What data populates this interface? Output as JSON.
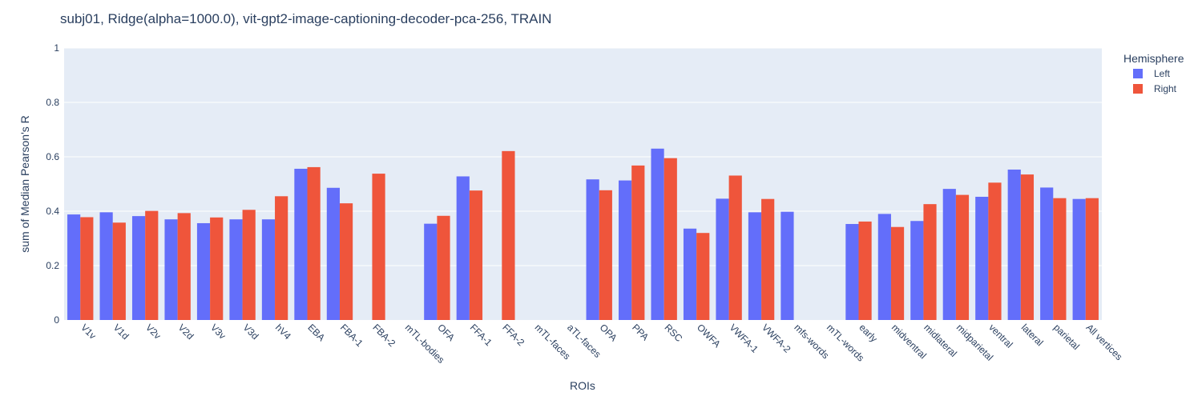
{
  "chart_data": {
    "type": "bar",
    "title": "subj01, Ridge(alpha=1000.0), vit-gpt2-image-captioning-decoder-pca-256, TRAIN",
    "xlabel": "ROIs",
    "ylabel": "sum of Median Pearson's R",
    "ylim": [
      0,
      1
    ],
    "yticks": [
      "0",
      "0.2",
      "0.4",
      "0.6",
      "0.8",
      "1"
    ],
    "grid": true,
    "legend": {
      "title": "Hemisphere",
      "placement": "right"
    },
    "categories": [
      "V1v",
      "V1d",
      "V2v",
      "V2d",
      "V3v",
      "V3d",
      "hV4",
      "EBA",
      "FBA-1",
      "FBA-2",
      "mTL-bodies",
      "OFA",
      "FFA-1",
      "FFA-2",
      "mTL-faces",
      "aTL-faces",
      "OPA",
      "PPA",
      "RSC",
      "OWFA",
      "VWFA-1",
      "VWFA-2",
      "mfs-words",
      "mTL-words",
      "early",
      "midventral",
      "midlateral",
      "midparietal",
      "ventral",
      "lateral",
      "parietal",
      "All vertices"
    ],
    "series": [
      {
        "name": "Left",
        "color": "#636efa",
        "values": [
          0.388,
          0.396,
          0.382,
          0.37,
          0.356,
          0.37,
          0.37,
          0.556,
          0.486,
          null,
          null,
          0.354,
          0.528,
          null,
          null,
          null,
          0.517,
          0.513,
          0.63,
          0.336,
          0.446,
          0.396,
          0.398,
          null,
          0.353,
          0.39,
          0.364,
          0.482,
          0.453,
          0.553,
          0.487,
          0.445
        ]
      },
      {
        "name": "Right",
        "color": "#ef553b",
        "values": [
          0.378,
          0.358,
          0.401,
          0.393,
          0.377,
          0.405,
          0.455,
          0.562,
          0.429,
          0.538,
          null,
          0.383,
          0.476,
          0.621,
          null,
          null,
          0.477,
          0.568,
          0.595,
          0.32,
          0.531,
          0.445,
          null,
          null,
          0.362,
          0.342,
          0.426,
          0.46,
          0.505,
          0.535,
          0.448,
          0.448
        ]
      }
    ]
  }
}
